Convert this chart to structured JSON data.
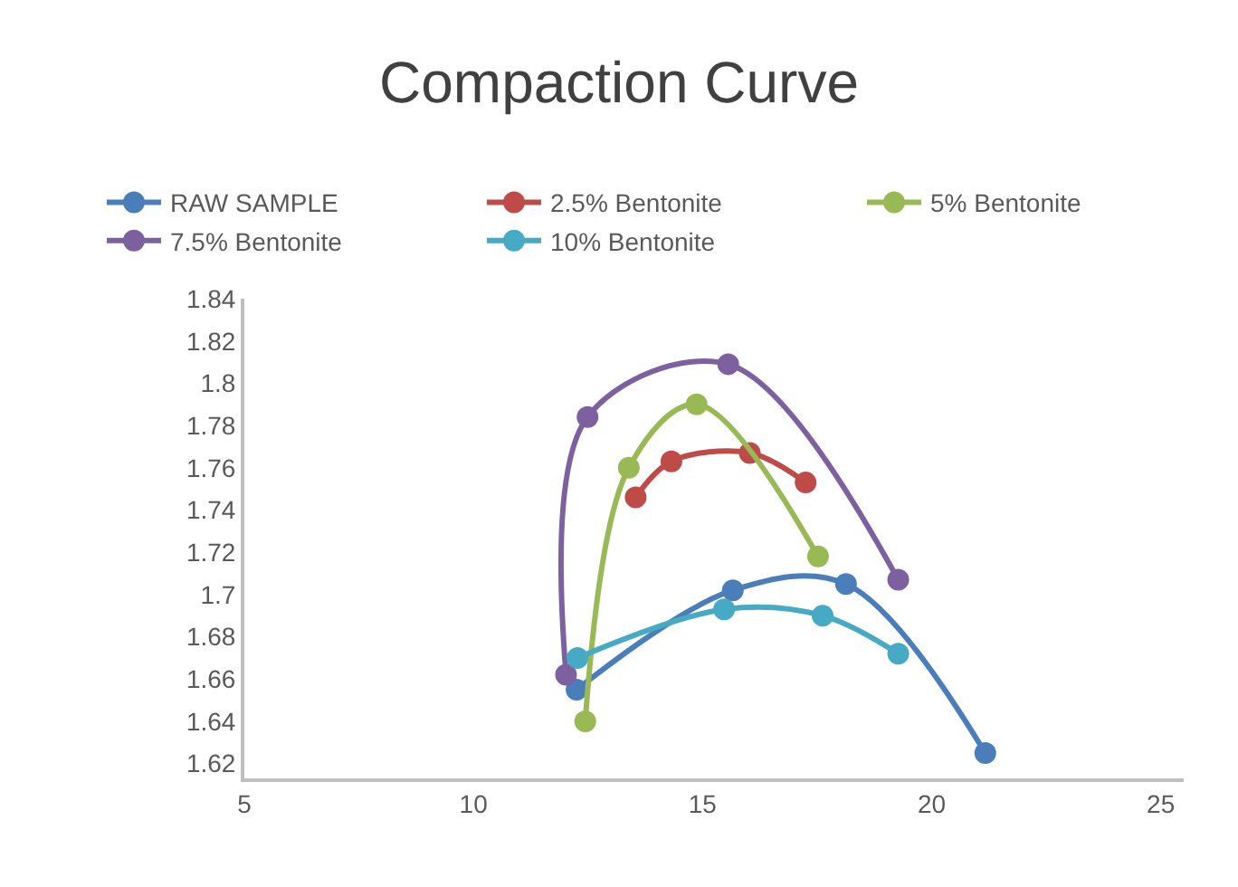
{
  "chart_data": {
    "type": "line",
    "title": "Compaction Curve",
    "legend": "top",
    "marker": "circle",
    "line_style": "solid",
    "xlim": [
      5,
      25.5
    ],
    "xticks": [
      5,
      10,
      15,
      20,
      25
    ],
    "ylim": [
      1.613,
      1.84
    ],
    "yticks": [
      1.62,
      1.64,
      1.66,
      1.68,
      1.7,
      1.72,
      1.74,
      1.76,
      1.78,
      1.8,
      1.82,
      1.84
    ],
    "series": [
      {
        "name": "RAW SAMPLE",
        "color": "#4a7ebb",
        "x": [
          12.25,
          15.66,
          18.13,
          21.17
        ],
        "values": [
          1.655,
          1.702,
          1.705,
          1.625
        ]
      },
      {
        "name": "2.5% Bentonite",
        "color": "#be4b48",
        "x": [
          13.54,
          14.32,
          16.03,
          17.25
        ],
        "values": [
          1.746,
          1.763,
          1.767,
          1.753
        ]
      },
      {
        "name": "5% Bentonite",
        "color": "#98b954",
        "x": [
          12.44,
          13.39,
          14.87,
          17.52
        ],
        "values": [
          1.64,
          1.76,
          1.79,
          1.718
        ]
      },
      {
        "name": "7.5% Bentonite",
        "color": "#7d60a0",
        "x": [
          12.02,
          12.49,
          15.56,
          19.27
        ],
        "values": [
          1.662,
          1.784,
          1.809,
          1.707
        ]
      },
      {
        "name": "10% Bentonite",
        "color": "#46aac5",
        "x": [
          12.27,
          15.47,
          17.62,
          19.27
        ],
        "values": [
          1.67,
          1.693,
          1.69,
          1.672
        ]
      }
    ]
  }
}
